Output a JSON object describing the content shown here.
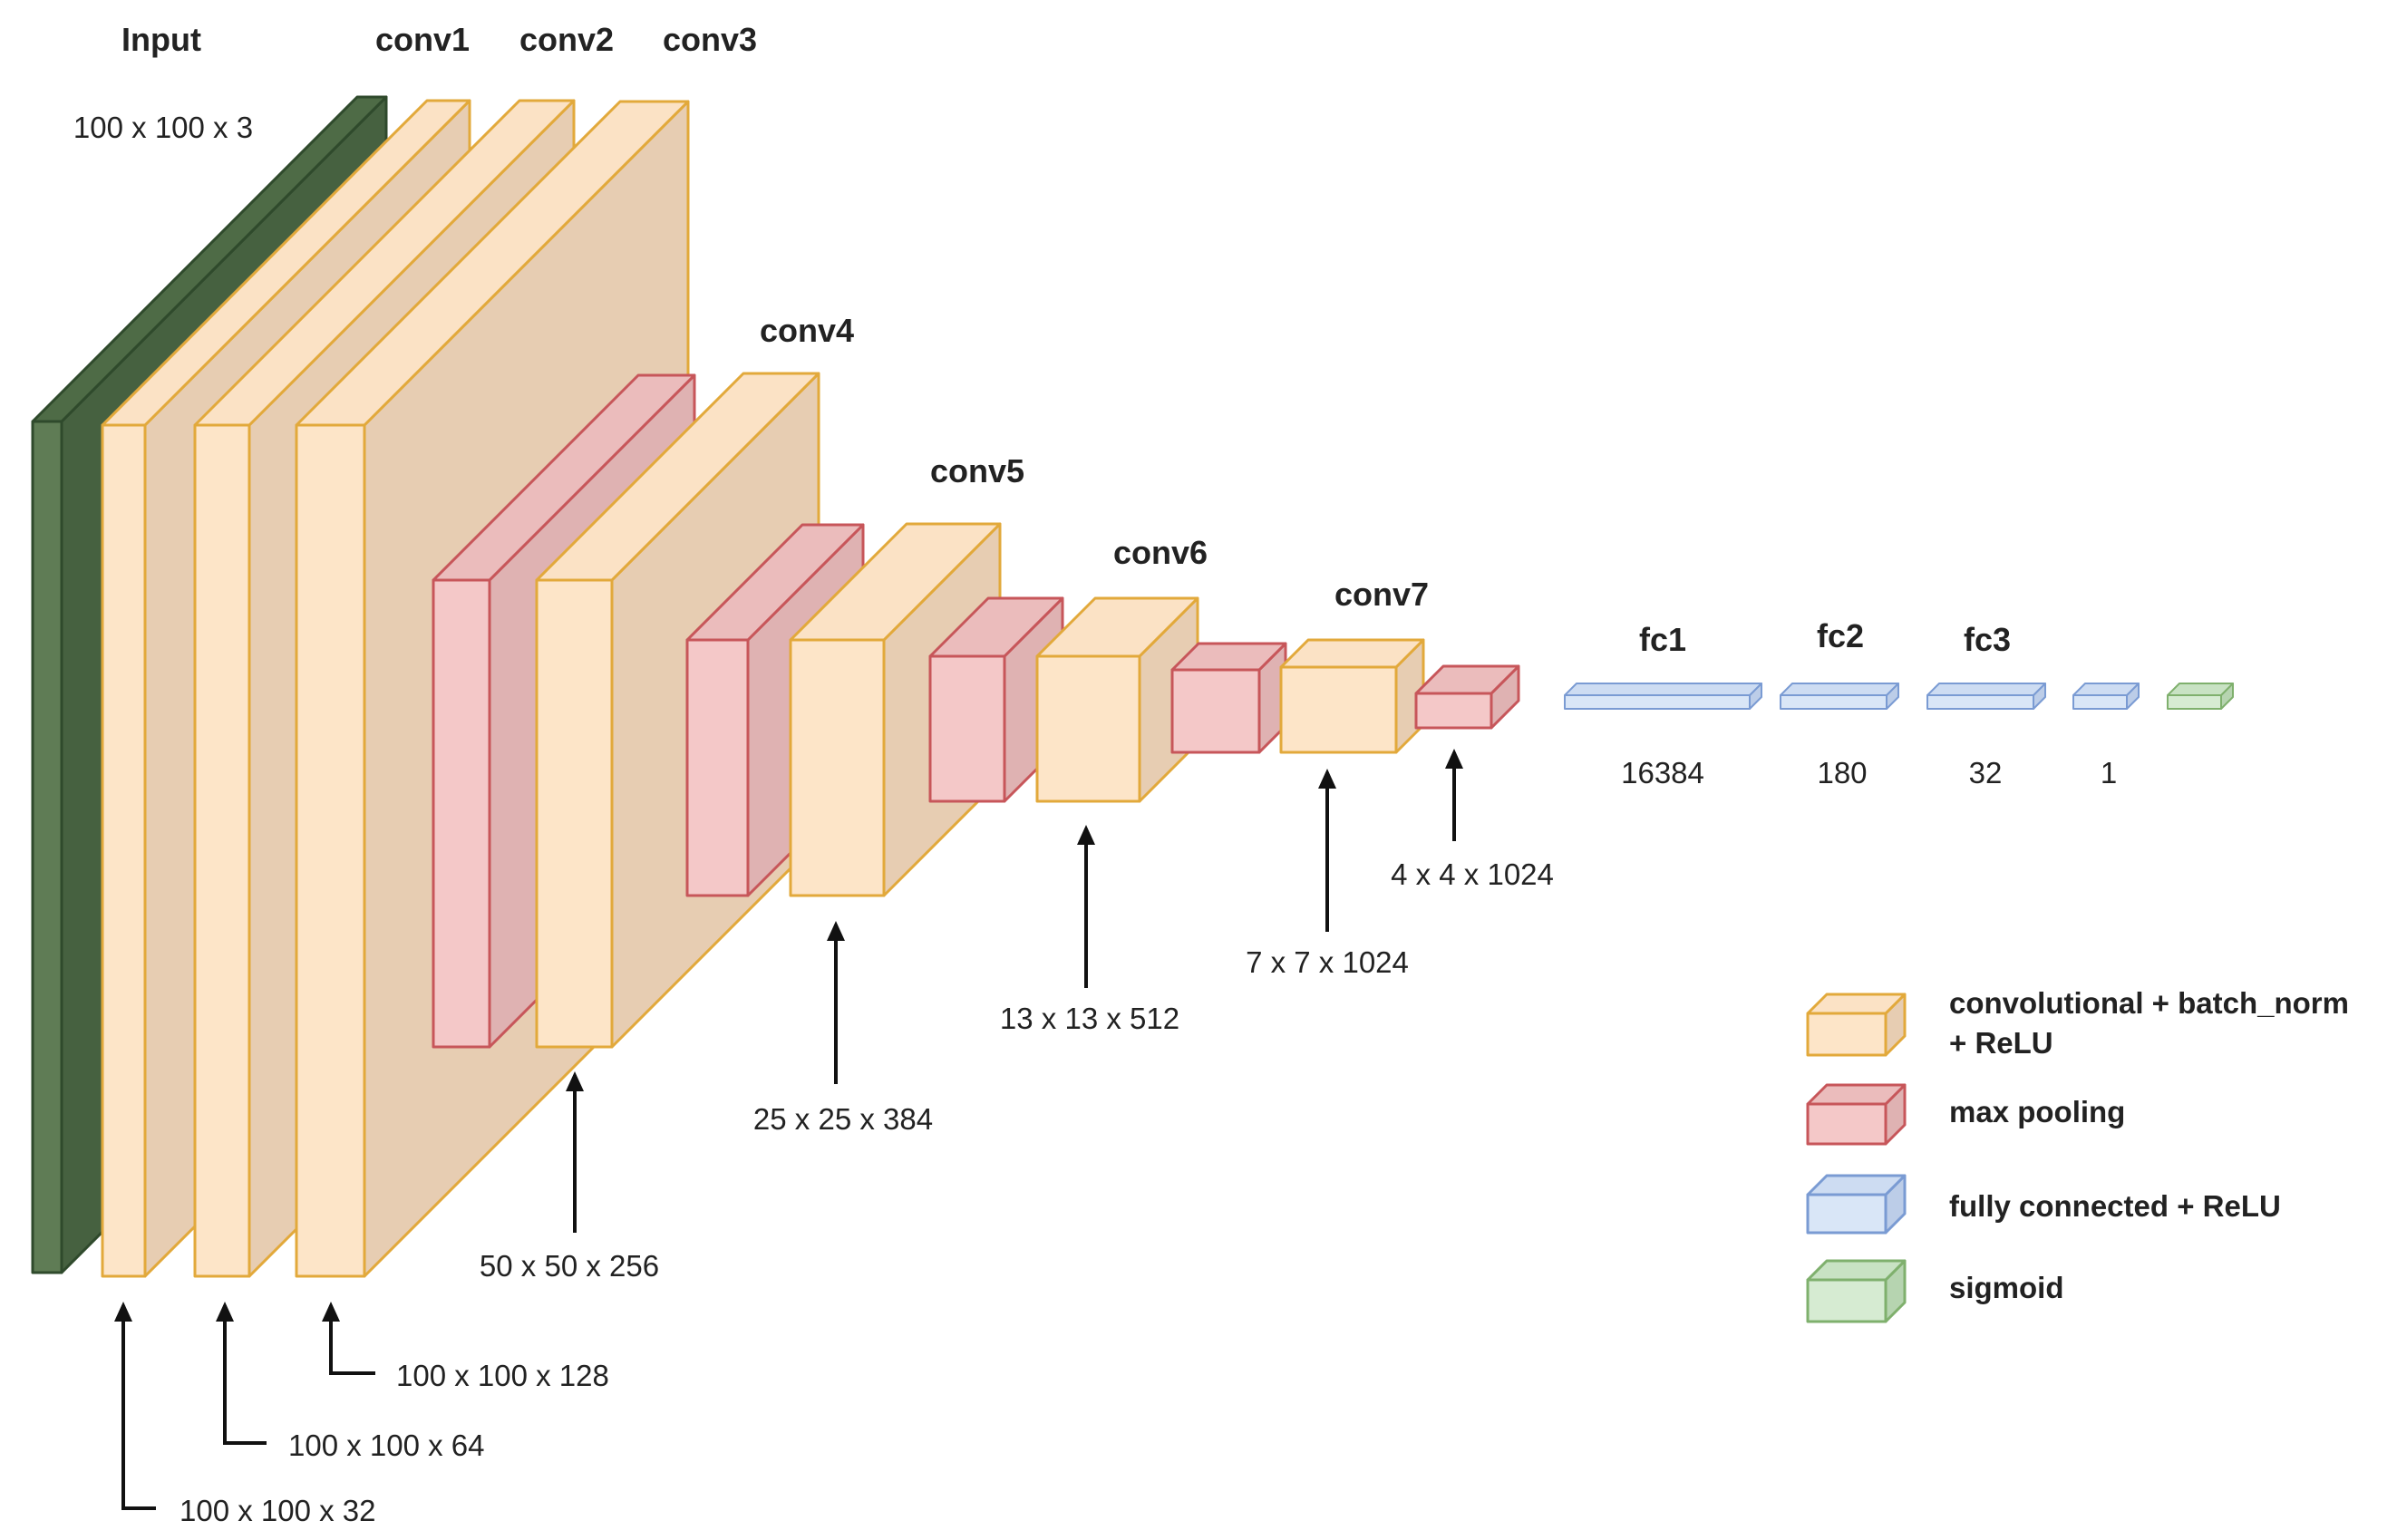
{
  "colors": {
    "input_front": "#5f7c55",
    "input_top": "#4e6b46",
    "input_side": "#466140",
    "input_stroke": "#2f4a2c",
    "conv_front": "#fde5c8",
    "conv_top": "#fbe2c5",
    "conv_side": "#e7cdb2",
    "conv_stroke": "#e2a93b",
    "pool_front": "#f4c8c8",
    "pool_top": "#ebbcbc",
    "pool_side": "#dfb2b2",
    "pool_stroke": "#c7565a",
    "fc_front": "#d9e6f7",
    "fc_top": "#cddcf2",
    "fc_side": "#bccde8",
    "fc_stroke": "#7a9bd3",
    "sig_front": "#d6ebd2",
    "sig_top": "#c8e2c3",
    "sig_side": "#b6d4b0",
    "sig_stroke": "#7fb06d"
  },
  "layer_titles": {
    "input": "Input",
    "conv1": "conv1",
    "conv2": "conv2",
    "conv3": "conv3",
    "conv4": "conv4",
    "conv5": "conv5",
    "conv6": "conv6",
    "conv7": "conv7",
    "fc1": "fc1",
    "fc2": "fc2",
    "fc3": "fc3"
  },
  "dimensions": {
    "input": "100 x 100 x 3",
    "conv1": "100 x 100 x 32",
    "conv2": "100 x 100 x 64",
    "conv3": "100 x 100 x 128",
    "conv4": "50 x 50 x 256",
    "conv5": "25 x 25 x 384",
    "conv6": "13 x 13 x 512",
    "conv7": "7 x 7 x 1024",
    "pool7": "4 x 4 x 1024",
    "fc1": "16384",
    "fc2": "180",
    "fc3": "32",
    "out": "1"
  },
  "legend": {
    "conv_line1": "convolutional + batch_norm",
    "conv_line2": "+ ReLU",
    "pool": "max pooling",
    "fc": "fully connected + ReLU",
    "sigmoid": "sigmoid"
  }
}
